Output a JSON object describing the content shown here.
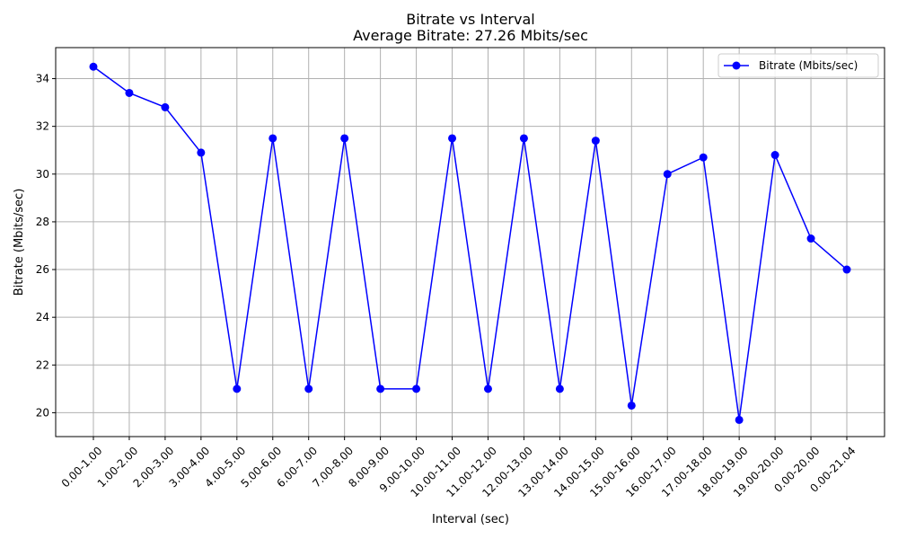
{
  "chart_data": {
    "type": "line",
    "title": "Bitrate vs Interval",
    "subtitle": "Average Bitrate: 27.26 Mbits/sec",
    "xlabel": "Interval (sec)",
    "ylabel": "Bitrate (Mbits/sec)",
    "categories": [
      "0.00-1.00",
      "1.00-2.00",
      "2.00-3.00",
      "3.00-4.00",
      "4.00-5.00",
      "5.00-6.00",
      "6.00-7.00",
      "7.00-8.00",
      "8.00-9.00",
      "9.00-10.00",
      "10.00-11.00",
      "11.00-12.00",
      "12.00-13.00",
      "13.00-14.00",
      "14.00-15.00",
      "15.00-16.00",
      "16.00-17.00",
      "17.00-18.00",
      "18.00-19.00",
      "19.00-20.00",
      "0.00-20.00",
      "0.00-21.04"
    ],
    "series": [
      {
        "name": "Bitrate (Mbits/sec)",
        "color": "#0000ff",
        "marker": "circle",
        "values": [
          34.5,
          33.4,
          32.8,
          30.9,
          21.0,
          31.5,
          21.0,
          31.5,
          21.0,
          21.0,
          31.5,
          21.0,
          31.5,
          21.0,
          31.4,
          20.3,
          30.0,
          30.7,
          19.7,
          30.8,
          27.3,
          26.0
        ]
      }
    ],
    "yticks": [
      20,
      22,
      24,
      26,
      28,
      30,
      32,
      34
    ],
    "ylim": [
      19.0,
      35.3
    ],
    "grid": true,
    "legend_position": "top-right"
  }
}
